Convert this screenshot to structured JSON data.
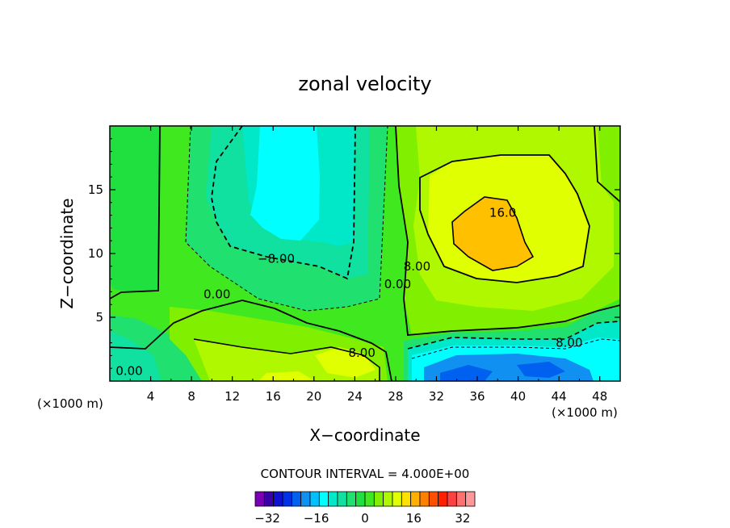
{
  "chart_data": {
    "type": "heatmap",
    "title": "zonal velocity",
    "xlabel": "X−coordinate",
    "ylabel": "Z−coordinate",
    "x_units": "(×1000 m)",
    "z_units": "(×1000 m)",
    "xlim": [
      0,
      50
    ],
    "ylim": [
      0,
      20
    ],
    "x_ticks": [
      "4",
      "8",
      "12",
      "16",
      "20",
      "24",
      "28",
      "32",
      "36",
      "40",
      "44",
      "48"
    ],
    "y_ticks": [
      "5",
      "10",
      "15"
    ],
    "contour_interval_label": "CONTOUR INTERVAL = 4.000E+00",
    "contour_labels": [
      {
        "text": "16.0",
        "x": 38.5,
        "z": 13.2
      },
      {
        "text": "8.00",
        "x": 30.1,
        "z": 9.0
      },
      {
        "text": "−8.00",
        "x": 16.3,
        "z": 9.6
      },
      {
        "text": "0.00",
        "x": 10.5,
        "z": 6.8
      },
      {
        "text": "0.00",
        "x": 28.2,
        "z": 7.6
      },
      {
        "text": "8.00",
        "x": 24.7,
        "z": 2.2
      },
      {
        "text": "8.00",
        "x": 45.0,
        "z": 3.0
      },
      {
        "text": "0.00",
        "x": 1.9,
        "z": 0.8
      }
    ],
    "colorbar": {
      "min": -36,
      "max": 36,
      "step": 4,
      "tick_labels": [
        "−32",
        "−16",
        "0",
        "16",
        "32"
      ],
      "colors": [
        "#7a00b8",
        "#3a00a8",
        "#1010d0",
        "#0030e8",
        "#0060f0",
        "#1090f0",
        "#00c0ff",
        "#00ffff",
        "#00e8c8",
        "#10e0a0",
        "#20e070",
        "#20e040",
        "#40e820",
        "#80f000",
        "#b0f800",
        "#e0ff00",
        "#ffe000",
        "#ffb000",
        "#ff8000",
        "#ff5000",
        "#ff2000",
        "#ff4040",
        "#ff7070",
        "#ff9898"
      ]
    },
    "field_samples": [
      [
        0,
        18,
        0
      ],
      [
        12,
        18,
        -4
      ],
      [
        18,
        18,
        -16
      ],
      [
        22,
        16,
        -12
      ],
      [
        27,
        15,
        0
      ],
      [
        30,
        16,
        4
      ],
      [
        40,
        18,
        8
      ],
      [
        48,
        17,
        4
      ],
      [
        38,
        12,
        18
      ],
      [
        35,
        14,
        14
      ],
      [
        8,
        10,
        0
      ],
      [
        17,
        11,
        -10
      ],
      [
        24,
        8,
        -4
      ],
      [
        3,
        6,
        -4
      ],
      [
        15,
        4,
        8
      ],
      [
        22,
        1,
        12
      ],
      [
        31,
        2,
        -8
      ],
      [
        37,
        1,
        -20
      ],
      [
        43,
        1,
        -16
      ],
      [
        48,
        3,
        -4
      ],
      [
        2,
        2,
        -8
      ],
      [
        9,
        1,
        4
      ]
    ]
  }
}
